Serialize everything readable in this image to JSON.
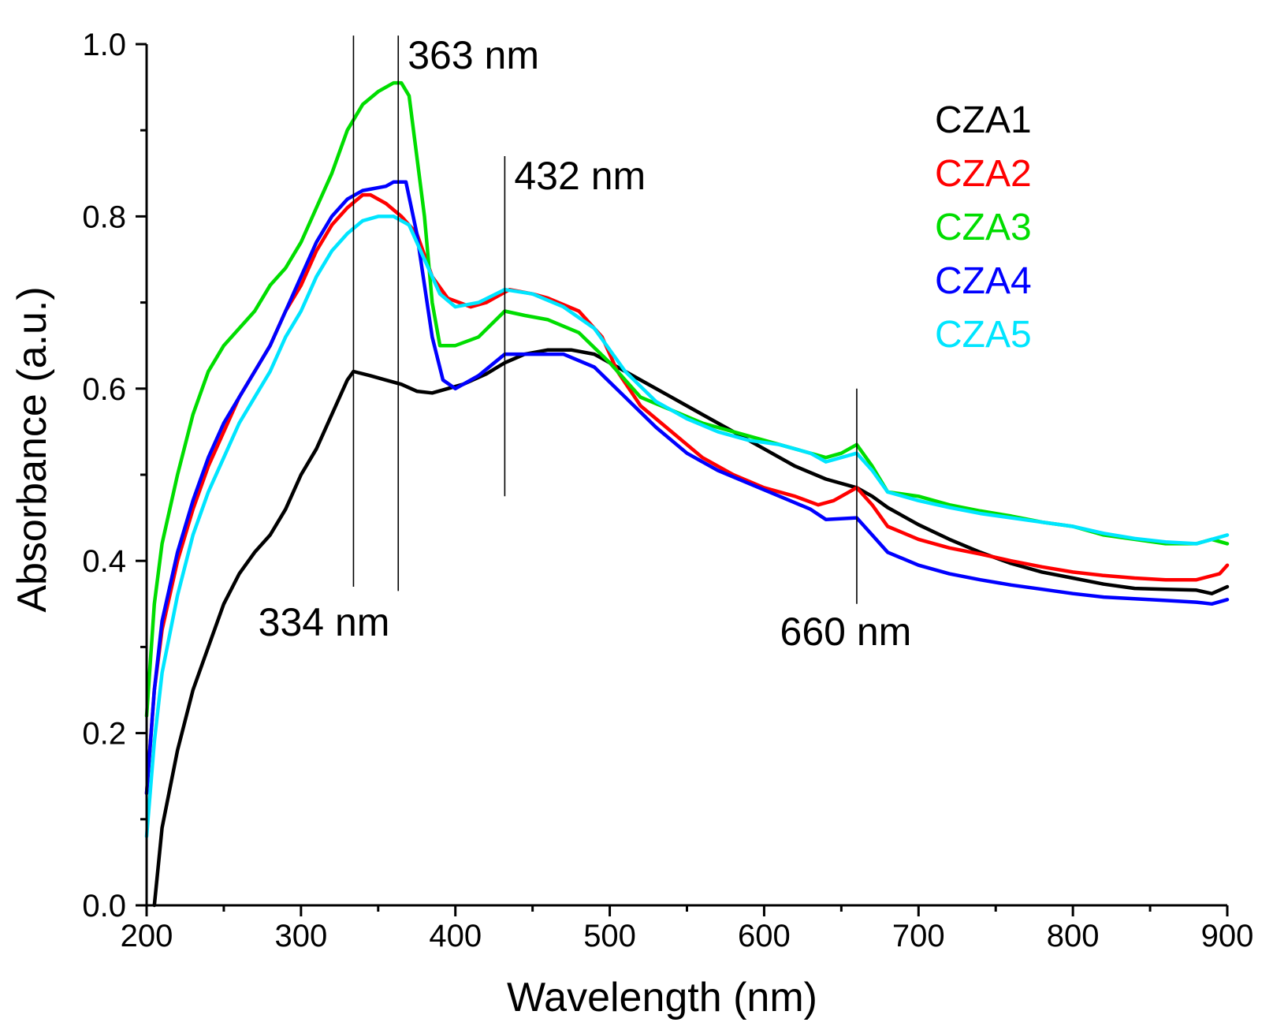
{
  "chart_data": {
    "type": "line",
    "title": "",
    "xlabel": "Wavelength (nm)",
    "ylabel": "Absorbance (a.u.)",
    "xlim": [
      200,
      900
    ],
    "ylim": [
      0.0,
      1.0
    ],
    "x_ticks": [
      200,
      300,
      400,
      500,
      600,
      700,
      800,
      900
    ],
    "x_tick_labels": [
      "200",
      "300",
      "400",
      "500",
      "600",
      "700",
      "800",
      "900"
    ],
    "x_minor_step": 50,
    "y_ticks": [
      0.0,
      0.2,
      0.4,
      0.6,
      0.8,
      1.0
    ],
    "y_tick_labels": [
      "0.0",
      "0.2",
      "0.4",
      "0.6",
      "0.8",
      "1.0"
    ],
    "y_minor_step": 0.1,
    "grid": false,
    "legend_position": "top-right",
    "series": [
      {
        "name": "CZA1",
        "color": "#000000",
        "points": [
          [
            205,
            0.0
          ],
          [
            210,
            0.09
          ],
          [
            220,
            0.18
          ],
          [
            230,
            0.25
          ],
          [
            240,
            0.3
          ],
          [
            250,
            0.35
          ],
          [
            260,
            0.385
          ],
          [
            270,
            0.41
          ],
          [
            280,
            0.43
          ],
          [
            290,
            0.46
          ],
          [
            300,
            0.5
          ],
          [
            310,
            0.53
          ],
          [
            320,
            0.57
          ],
          [
            325,
            0.59
          ],
          [
            330,
            0.61
          ],
          [
            334,
            0.62
          ],
          [
            345,
            0.615
          ],
          [
            355,
            0.61
          ],
          [
            365,
            0.605
          ],
          [
            375,
            0.597
          ],
          [
            385,
            0.595
          ],
          [
            395,
            0.6
          ],
          [
            405,
            0.605
          ],
          [
            420,
            0.617
          ],
          [
            432,
            0.63
          ],
          [
            445,
            0.64
          ],
          [
            460,
            0.645
          ],
          [
            475,
            0.645
          ],
          [
            490,
            0.64
          ],
          [
            500,
            0.63
          ],
          [
            520,
            0.61
          ],
          [
            540,
            0.59
          ],
          [
            560,
            0.57
          ],
          [
            580,
            0.55
          ],
          [
            600,
            0.53
          ],
          [
            620,
            0.51
          ],
          [
            640,
            0.495
          ],
          [
            660,
            0.485
          ],
          [
            670,
            0.475
          ],
          [
            680,
            0.462
          ],
          [
            700,
            0.442
          ],
          [
            720,
            0.425
          ],
          [
            740,
            0.41
          ],
          [
            760,
            0.397
          ],
          [
            780,
            0.387
          ],
          [
            800,
            0.38
          ],
          [
            820,
            0.373
          ],
          [
            840,
            0.368
          ],
          [
            860,
            0.367
          ],
          [
            880,
            0.366
          ],
          [
            890,
            0.362
          ],
          [
            900,
            0.37
          ]
        ]
      },
      {
        "name": "CZA2",
        "color": "#ff0000",
        "points": [
          [
            200,
            0.13
          ],
          [
            205,
            0.25
          ],
          [
            210,
            0.32
          ],
          [
            220,
            0.4
          ],
          [
            230,
            0.46
          ],
          [
            240,
            0.51
          ],
          [
            250,
            0.55
          ],
          [
            260,
            0.59
          ],
          [
            270,
            0.62
          ],
          [
            280,
            0.65
          ],
          [
            290,
            0.69
          ],
          [
            300,
            0.72
          ],
          [
            310,
            0.76
          ],
          [
            320,
            0.79
          ],
          [
            330,
            0.81
          ],
          [
            340,
            0.825
          ],
          [
            345,
            0.825
          ],
          [
            355,
            0.815
          ],
          [
            365,
            0.8
          ],
          [
            375,
            0.78
          ],
          [
            385,
            0.73
          ],
          [
            395,
            0.705
          ],
          [
            410,
            0.695
          ],
          [
            420,
            0.7
          ],
          [
            435,
            0.715
          ],
          [
            450,
            0.71
          ],
          [
            460,
            0.705
          ],
          [
            480,
            0.69
          ],
          [
            495,
            0.66
          ],
          [
            505,
            0.62
          ],
          [
            520,
            0.58
          ],
          [
            540,
            0.55
          ],
          [
            560,
            0.52
          ],
          [
            580,
            0.5
          ],
          [
            600,
            0.485
          ],
          [
            620,
            0.475
          ],
          [
            635,
            0.465
          ],
          [
            645,
            0.47
          ],
          [
            660,
            0.485
          ],
          [
            670,
            0.465
          ],
          [
            680,
            0.44
          ],
          [
            700,
            0.425
          ],
          [
            720,
            0.415
          ],
          [
            740,
            0.408
          ],
          [
            760,
            0.4
          ],
          [
            780,
            0.393
          ],
          [
            800,
            0.387
          ],
          [
            820,
            0.383
          ],
          [
            840,
            0.38
          ],
          [
            860,
            0.378
          ],
          [
            880,
            0.378
          ],
          [
            895,
            0.385
          ],
          [
            900,
            0.395
          ]
        ]
      },
      {
        "name": "CZA3",
        "color": "#00dd00",
        "points": [
          [
            200,
            0.22
          ],
          [
            205,
            0.35
          ],
          [
            210,
            0.42
          ],
          [
            220,
            0.5
          ],
          [
            230,
            0.57
          ],
          [
            240,
            0.62
          ],
          [
            250,
            0.65
          ],
          [
            260,
            0.67
          ],
          [
            270,
            0.69
          ],
          [
            280,
            0.72
          ],
          [
            290,
            0.74
          ],
          [
            300,
            0.77
          ],
          [
            310,
            0.81
          ],
          [
            320,
            0.85
          ],
          [
            330,
            0.9
          ],
          [
            340,
            0.93
          ],
          [
            350,
            0.945
          ],
          [
            360,
            0.955
          ],
          [
            365,
            0.955
          ],
          [
            370,
            0.94
          ],
          [
            380,
            0.8
          ],
          [
            385,
            0.7
          ],
          [
            390,
            0.65
          ],
          [
            400,
            0.65
          ],
          [
            415,
            0.66
          ],
          [
            432,
            0.69
          ],
          [
            445,
            0.685
          ],
          [
            460,
            0.68
          ],
          [
            480,
            0.665
          ],
          [
            500,
            0.63
          ],
          [
            520,
            0.59
          ],
          [
            540,
            0.575
          ],
          [
            560,
            0.56
          ],
          [
            580,
            0.55
          ],
          [
            600,
            0.54
          ],
          [
            620,
            0.53
          ],
          [
            640,
            0.52
          ],
          [
            650,
            0.525
          ],
          [
            660,
            0.535
          ],
          [
            670,
            0.51
          ],
          [
            680,
            0.48
          ],
          [
            700,
            0.475
          ],
          [
            720,
            0.465
          ],
          [
            740,
            0.458
          ],
          [
            760,
            0.452
          ],
          [
            780,
            0.445
          ],
          [
            800,
            0.44
          ],
          [
            820,
            0.43
          ],
          [
            840,
            0.425
          ],
          [
            860,
            0.42
          ],
          [
            880,
            0.42
          ],
          [
            890,
            0.425
          ],
          [
            900,
            0.42
          ]
        ]
      },
      {
        "name": "CZA4",
        "color": "#0000ff",
        "points": [
          [
            200,
            0.13
          ],
          [
            205,
            0.25
          ],
          [
            210,
            0.33
          ],
          [
            220,
            0.41
          ],
          [
            230,
            0.47
          ],
          [
            240,
            0.52
          ],
          [
            250,
            0.56
          ],
          [
            260,
            0.59
          ],
          [
            270,
            0.62
          ],
          [
            280,
            0.65
          ],
          [
            290,
            0.69
          ],
          [
            300,
            0.73
          ],
          [
            310,
            0.77
          ],
          [
            320,
            0.8
          ],
          [
            330,
            0.82
          ],
          [
            340,
            0.83
          ],
          [
            355,
            0.835
          ],
          [
            360,
            0.84
          ],
          [
            368,
            0.84
          ],
          [
            375,
            0.78
          ],
          [
            385,
            0.66
          ],
          [
            392,
            0.61
          ],
          [
            400,
            0.6
          ],
          [
            415,
            0.615
          ],
          [
            432,
            0.64
          ],
          [
            450,
            0.64
          ],
          [
            470,
            0.64
          ],
          [
            490,
            0.625
          ],
          [
            510,
            0.59
          ],
          [
            530,
            0.555
          ],
          [
            550,
            0.525
          ],
          [
            570,
            0.505
          ],
          [
            590,
            0.49
          ],
          [
            610,
            0.475
          ],
          [
            630,
            0.46
          ],
          [
            640,
            0.448
          ],
          [
            660,
            0.45
          ],
          [
            670,
            0.43
          ],
          [
            680,
            0.41
          ],
          [
            700,
            0.395
          ],
          [
            720,
            0.385
          ],
          [
            740,
            0.378
          ],
          [
            760,
            0.372
          ],
          [
            780,
            0.367
          ],
          [
            800,
            0.362
          ],
          [
            820,
            0.358
          ],
          [
            840,
            0.356
          ],
          [
            860,
            0.354
          ],
          [
            880,
            0.352
          ],
          [
            890,
            0.35
          ],
          [
            900,
            0.355
          ]
        ]
      },
      {
        "name": "CZA5",
        "color": "#00e5ff",
        "points": [
          [
            200,
            0.08
          ],
          [
            205,
            0.19
          ],
          [
            210,
            0.27
          ],
          [
            220,
            0.36
          ],
          [
            230,
            0.43
          ],
          [
            240,
            0.48
          ],
          [
            250,
            0.52
          ],
          [
            260,
            0.56
          ],
          [
            270,
            0.59
          ],
          [
            280,
            0.62
          ],
          [
            290,
            0.66
          ],
          [
            300,
            0.69
          ],
          [
            310,
            0.73
          ],
          [
            320,
            0.76
          ],
          [
            330,
            0.78
          ],
          [
            340,
            0.795
          ],
          [
            350,
            0.8
          ],
          [
            360,
            0.8
          ],
          [
            370,
            0.79
          ],
          [
            380,
            0.75
          ],
          [
            390,
            0.71
          ],
          [
            400,
            0.695
          ],
          [
            415,
            0.7
          ],
          [
            432,
            0.715
          ],
          [
            450,
            0.71
          ],
          [
            470,
            0.695
          ],
          [
            490,
            0.67
          ],
          [
            510,
            0.62
          ],
          [
            530,
            0.585
          ],
          [
            550,
            0.565
          ],
          [
            570,
            0.55
          ],
          [
            590,
            0.54
          ],
          [
            610,
            0.535
          ],
          [
            630,
            0.525
          ],
          [
            640,
            0.515
          ],
          [
            660,
            0.525
          ],
          [
            670,
            0.505
          ],
          [
            680,
            0.48
          ],
          [
            700,
            0.47
          ],
          [
            720,
            0.462
          ],
          [
            740,
            0.455
          ],
          [
            760,
            0.45
          ],
          [
            780,
            0.445
          ],
          [
            800,
            0.44
          ],
          [
            820,
            0.432
          ],
          [
            840,
            0.426
          ],
          [
            860,
            0.422
          ],
          [
            880,
            0.42
          ],
          [
            890,
            0.425
          ],
          [
            900,
            0.43
          ]
        ]
      }
    ],
    "annotations": [
      {
        "x": 334,
        "label": "334 nm",
        "y_from": 0.37,
        "y_to": 1.01,
        "label_pos": "bottom-left"
      },
      {
        "x": 363,
        "label": "363 nm",
        "y_from": 0.365,
        "y_to": 1.01,
        "label_pos": "top-right"
      },
      {
        "x": 432,
        "label": "432 nm",
        "y_from": 0.475,
        "y_to": 0.87,
        "label_pos": "top-right"
      },
      {
        "x": 660,
        "label": "660 nm",
        "y_from": 0.35,
        "y_to": 0.6,
        "label_pos": "bottom"
      }
    ]
  }
}
